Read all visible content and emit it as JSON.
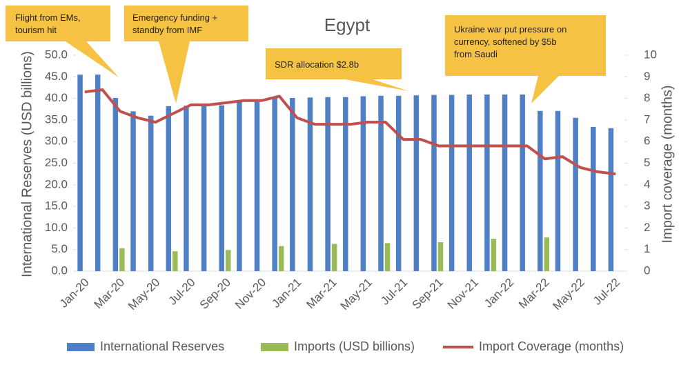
{
  "chart_data": {
    "type": "bar_line",
    "title": "Egypt",
    "ylabel": "International Reserves (USD billions)",
    "y2label": "Import coverage (months)",
    "categories": [
      "Jan-20",
      null,
      "Mar-20",
      null,
      "May-20",
      null,
      "Jul-20",
      null,
      "Sep-20",
      null,
      "Nov-20",
      null,
      "Jan-21",
      null,
      "Mar-21",
      null,
      "May-21",
      null,
      "Jul-21",
      null,
      "Sep-21",
      null,
      "Nov-21",
      null,
      "Jan-22",
      null,
      "Mar-22",
      null,
      "May-22",
      null,
      "Jul-22"
    ],
    "series": [
      {
        "name": "International Reserves",
        "color": "#4f7fc4",
        "kind": "bar",
        "values": [
          45.5,
          45.5,
          40.1,
          37.0,
          36.0,
          38.2,
          38.3,
          38.3,
          38.4,
          39.2,
          39.2,
          40.1,
          40.1,
          40.2,
          40.3,
          40.3,
          40.5,
          40.6,
          40.6,
          40.7,
          40.8,
          40.8,
          40.9,
          40.9,
          40.9,
          40.9,
          37.1,
          37.1,
          35.5,
          33.4,
          33.1
        ]
      },
      {
        "name": "Imports (USD billions)",
        "color": "#9bbb59",
        "kind": "bar",
        "values": [
          null,
          null,
          5.3,
          null,
          null,
          4.6,
          null,
          null,
          4.9,
          null,
          null,
          5.8,
          null,
          null,
          6.3,
          null,
          null,
          6.5,
          null,
          null,
          6.7,
          null,
          null,
          7.5,
          null,
          null,
          7.8,
          null,
          null,
          null,
          null
        ]
      },
      {
        "name": "Import Coverage (months)",
        "color": "#c0504d",
        "kind": "line",
        "axis": "y2",
        "values": [
          8.3,
          8.4,
          7.4,
          7.1,
          6.9,
          7.3,
          7.7,
          7.7,
          7.8,
          7.9,
          7.9,
          8.1,
          7.1,
          6.8,
          6.8,
          6.8,
          6.9,
          6.9,
          6.1,
          6.1,
          5.8,
          5.8,
          5.8,
          5.8,
          5.8,
          5.8,
          5.2,
          5.3,
          4.8,
          4.6,
          4.5
        ]
      }
    ],
    "ylim": [
      0,
      50
    ],
    "yticks": [
      {
        "value": 0,
        "label": "0.0"
      },
      {
        "value": 5,
        "label": "5.0"
      },
      {
        "value": 10,
        "label": "10.0"
      },
      {
        "value": 15,
        "label": "15.0"
      },
      {
        "value": 20,
        "label": "20.0"
      },
      {
        "value": 25,
        "label": "25.0"
      },
      {
        "value": 30,
        "label": "30.0"
      },
      {
        "value": 35,
        "label": "35.0"
      },
      {
        "value": 40,
        "label": "40.0"
      },
      {
        "value": 45,
        "label": "45.0"
      },
      {
        "value": 50,
        "label": "50.0"
      }
    ],
    "y2lim": [
      0,
      10
    ],
    "y2ticks": [
      0,
      1,
      2,
      3,
      4,
      5,
      6,
      7,
      8,
      9,
      10
    ],
    "legend": "bottom",
    "annotations": [
      {
        "lines": [
          "Flight from EMs,",
          "tourism hit"
        ]
      },
      {
        "lines": [
          "Emergency funding +",
          "standby from IMF"
        ]
      },
      {
        "lines": [
          "SDR allocation $2.8b"
        ]
      },
      {
        "lines": [
          "Ukraine war put pressure on",
          "currency, softened by $5b",
          "from Saudi"
        ]
      }
    ]
  }
}
